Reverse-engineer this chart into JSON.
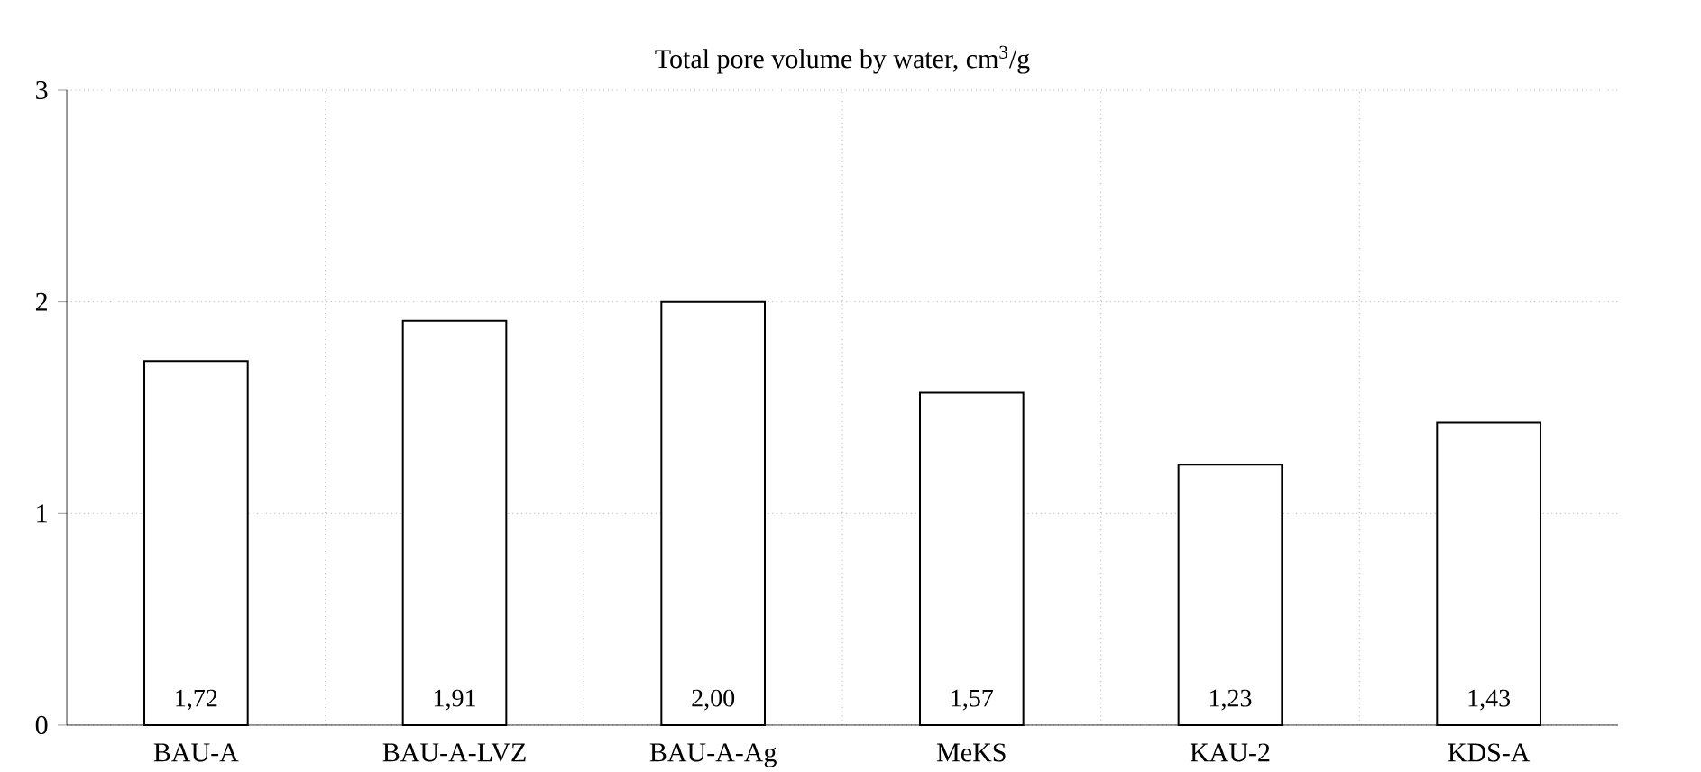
{
  "chart_data": {
    "type": "bar",
    "title": "Total pore volume by water, cm$^{3}$/g",
    "categories": [
      "BAU-A",
      "BAU-A-LVZ",
      "BAU-A-Ag",
      "MeKS",
      "KAU-2",
      "KDS-A"
    ],
    "values": [
      1.72,
      1.91,
      2.0,
      1.57,
      1.23,
      1.43
    ],
    "value_labels": [
      "1,72",
      "1,91",
      "2,00",
      "1,57",
      "1,23",
      "1,43"
    ],
    "color": "#ffffff",
    "ylim": [
      0,
      3
    ],
    "yticks": [
      0,
      1,
      2,
      3
    ],
    "grid": true
  }
}
